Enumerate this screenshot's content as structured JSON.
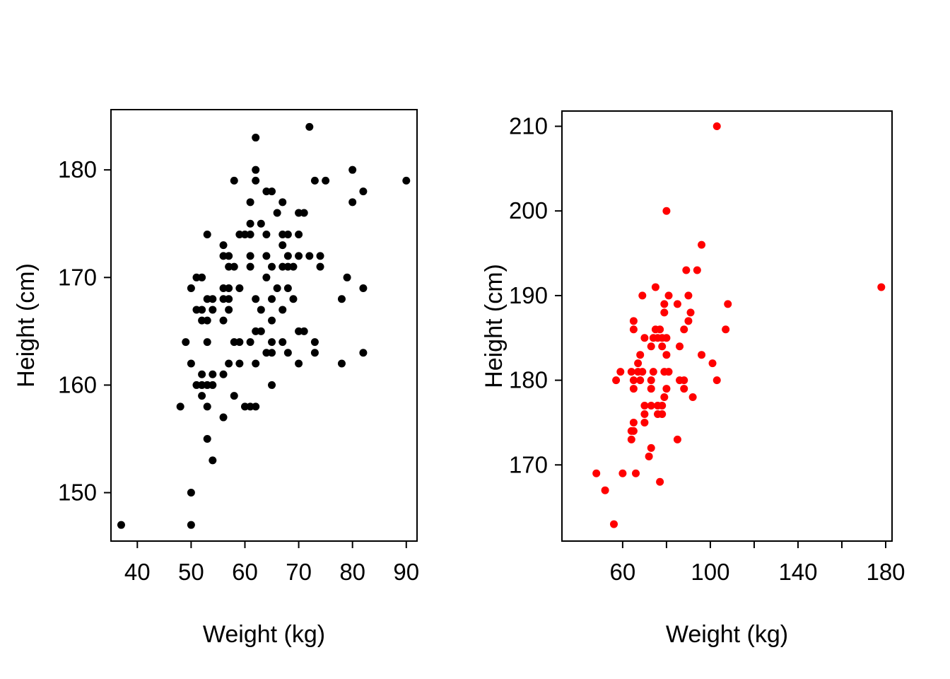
{
  "figure": {
    "background": "#ffffff",
    "description": "Two side-by-side scatter plots of Height (cm) versus Weight (kg); left panel black points, right panel red points"
  },
  "chart_data": [
    {
      "type": "scatter",
      "panel": "left",
      "title": "",
      "xlabel": "Weight (kg)",
      "ylabel": "Height (cm)",
      "legend": null,
      "grid": false,
      "marker": {
        "shape": "filled-circle",
        "color": "#000000",
        "radius_px": 5.5
      },
      "xlim": [
        35.1,
        92.0
      ],
      "ylim": [
        145.5,
        185.6
      ],
      "xticks": [
        40,
        50,
        60,
        70,
        80,
        90
      ],
      "xtick_labels": [
        "40",
        "50",
        "60",
        "70",
        "80",
        "90"
      ],
      "yticks": [
        150,
        160,
        170,
        180
      ],
      "ytick_labels": [
        "150",
        "160",
        "170",
        "180"
      ],
      "points": [
        [
          37,
          147
        ],
        [
          50,
          147
        ],
        [
          50,
          150
        ],
        [
          54,
          153
        ],
        [
          53,
          155
        ],
        [
          56,
          157
        ],
        [
          48,
          158
        ],
        [
          53,
          158
        ],
        [
          60,
          158
        ],
        [
          61,
          158
        ],
        [
          62,
          158
        ],
        [
          52,
          159
        ],
        [
          58,
          159
        ],
        [
          51,
          160
        ],
        [
          52,
          160
        ],
        [
          53,
          160
        ],
        [
          54,
          160
        ],
        [
          65,
          160
        ],
        [
          52,
          161
        ],
        [
          54,
          161
        ],
        [
          56,
          161
        ],
        [
          50,
          162
        ],
        [
          57,
          162
        ],
        [
          59,
          162
        ],
        [
          62,
          162
        ],
        [
          70,
          162
        ],
        [
          78,
          162
        ],
        [
          64,
          163
        ],
        [
          65,
          163
        ],
        [
          68,
          163
        ],
        [
          73,
          163
        ],
        [
          82,
          163
        ],
        [
          49,
          164
        ],
        [
          53,
          164
        ],
        [
          58,
          164
        ],
        [
          59,
          164
        ],
        [
          61,
          164
        ],
        [
          65,
          164
        ],
        [
          67,
          164
        ],
        [
          73,
          164
        ],
        [
          62,
          165
        ],
        [
          63,
          165
        ],
        [
          70,
          165
        ],
        [
          71,
          165
        ],
        [
          52,
          166
        ],
        [
          53,
          166
        ],
        [
          56,
          166
        ],
        [
          65,
          166
        ],
        [
          51,
          167
        ],
        [
          52,
          167
        ],
        [
          54,
          167
        ],
        [
          57,
          167
        ],
        [
          63,
          167
        ],
        [
          67,
          167
        ],
        [
          53,
          168
        ],
        [
          54,
          168
        ],
        [
          56,
          168
        ],
        [
          57,
          168
        ],
        [
          62,
          168
        ],
        [
          65,
          168
        ],
        [
          69,
          168
        ],
        [
          78,
          168
        ],
        [
          50,
          169
        ],
        [
          56,
          169
        ],
        [
          57,
          169
        ],
        [
          59,
          169
        ],
        [
          66,
          169
        ],
        [
          68,
          169
        ],
        [
          82,
          169
        ],
        [
          51,
          170
        ],
        [
          52,
          170
        ],
        [
          64,
          170
        ],
        [
          79,
          170
        ],
        [
          57,
          171
        ],
        [
          58,
          171
        ],
        [
          61,
          171
        ],
        [
          65,
          171
        ],
        [
          67,
          171
        ],
        [
          68,
          171
        ],
        [
          69,
          171
        ],
        [
          74,
          171
        ],
        [
          56,
          172
        ],
        [
          57,
          172
        ],
        [
          61,
          172
        ],
        [
          64,
          172
        ],
        [
          68,
          172
        ],
        [
          70,
          172
        ],
        [
          72,
          172
        ],
        [
          74,
          172
        ],
        [
          56,
          173
        ],
        [
          67,
          173
        ],
        [
          53,
          174
        ],
        [
          59,
          174
        ],
        [
          60,
          174
        ],
        [
          61,
          174
        ],
        [
          64,
          174
        ],
        [
          67,
          174
        ],
        [
          68,
          174
        ],
        [
          70,
          174
        ],
        [
          61,
          175
        ],
        [
          63,
          175
        ],
        [
          66,
          176
        ],
        [
          70,
          176
        ],
        [
          71,
          176
        ],
        [
          61,
          177
        ],
        [
          67,
          177
        ],
        [
          80,
          177
        ],
        [
          64,
          178
        ],
        [
          65,
          178
        ],
        [
          82,
          178
        ],
        [
          58,
          179
        ],
        [
          62,
          179
        ],
        [
          73,
          179
        ],
        [
          75,
          179
        ],
        [
          90,
          179
        ],
        [
          62,
          180
        ],
        [
          80,
          180
        ],
        [
          62,
          183
        ],
        [
          72,
          184
        ]
      ]
    },
    {
      "type": "scatter",
      "panel": "right",
      "title": "",
      "xlabel": "Weight (kg)",
      "ylabel": "Height (cm)",
      "legend": null,
      "grid": false,
      "marker": {
        "shape": "filled-circle",
        "color": "#ff0000",
        "radius_px": 5.5
      },
      "xlim": [
        32.3,
        182.9
      ],
      "ylim": [
        161.0,
        211.8
      ],
      "xticks": [
        60,
        80,
        100,
        120,
        140,
        160,
        180
      ],
      "xtick_labels": [
        "60",
        "",
        "100",
        "",
        "140",
        "",
        "180"
      ],
      "yticks": [
        170,
        180,
        190,
        200,
        210
      ],
      "ytick_labels": [
        "170",
        "180",
        "190",
        "200",
        "210"
      ],
      "points": [
        [
          56,
          163
        ],
        [
          52,
          167
        ],
        [
          77,
          168
        ],
        [
          48,
          169
        ],
        [
          60,
          169
        ],
        [
          66,
          169
        ],
        [
          72,
          171
        ],
        [
          73,
          172
        ],
        [
          64,
          173
        ],
        [
          85,
          173
        ],
        [
          64,
          174
        ],
        [
          65,
          174
        ],
        [
          65,
          175
        ],
        [
          70,
          175
        ],
        [
          70,
          176
        ],
        [
          76,
          176
        ],
        [
          78,
          176
        ],
        [
          70,
          177
        ],
        [
          73,
          177
        ],
        [
          76,
          177
        ],
        [
          78,
          177
        ],
        [
          79,
          178
        ],
        [
          92,
          178
        ],
        [
          65,
          179
        ],
        [
          73,
          179
        ],
        [
          80,
          179
        ],
        [
          88,
          179
        ],
        [
          57,
          180
        ],
        [
          65,
          180
        ],
        [
          68,
          180
        ],
        [
          73,
          180
        ],
        [
          86,
          180
        ],
        [
          88,
          180
        ],
        [
          103,
          180
        ],
        [
          59,
          181
        ],
        [
          64,
          181
        ],
        [
          67,
          181
        ],
        [
          69,
          181
        ],
        [
          74,
          181
        ],
        [
          79,
          181
        ],
        [
          81,
          181
        ],
        [
          67,
          182
        ],
        [
          101,
          182
        ],
        [
          68,
          183
        ],
        [
          80,
          183
        ],
        [
          96,
          183
        ],
        [
          73,
          184
        ],
        [
          78,
          184
        ],
        [
          86,
          184
        ],
        [
          70,
          185
        ],
        [
          74,
          185
        ],
        [
          76,
          185
        ],
        [
          78,
          185
        ],
        [
          80,
          185
        ],
        [
          65,
          186
        ],
        [
          75,
          186
        ],
        [
          77,
          186
        ],
        [
          88,
          186
        ],
        [
          107,
          186
        ],
        [
          65,
          187
        ],
        [
          90,
          187
        ],
        [
          79,
          188
        ],
        [
          91,
          188
        ],
        [
          79,
          189
        ],
        [
          85,
          189
        ],
        [
          108,
          189
        ],
        [
          69,
          190
        ],
        [
          81,
          190
        ],
        [
          90,
          190
        ],
        [
          75,
          191
        ],
        [
          178,
          191
        ],
        [
          89,
          193
        ],
        [
          94,
          193
        ],
        [
          96,
          196
        ],
        [
          80,
          200
        ],
        [
          103,
          210
        ]
      ]
    }
  ]
}
